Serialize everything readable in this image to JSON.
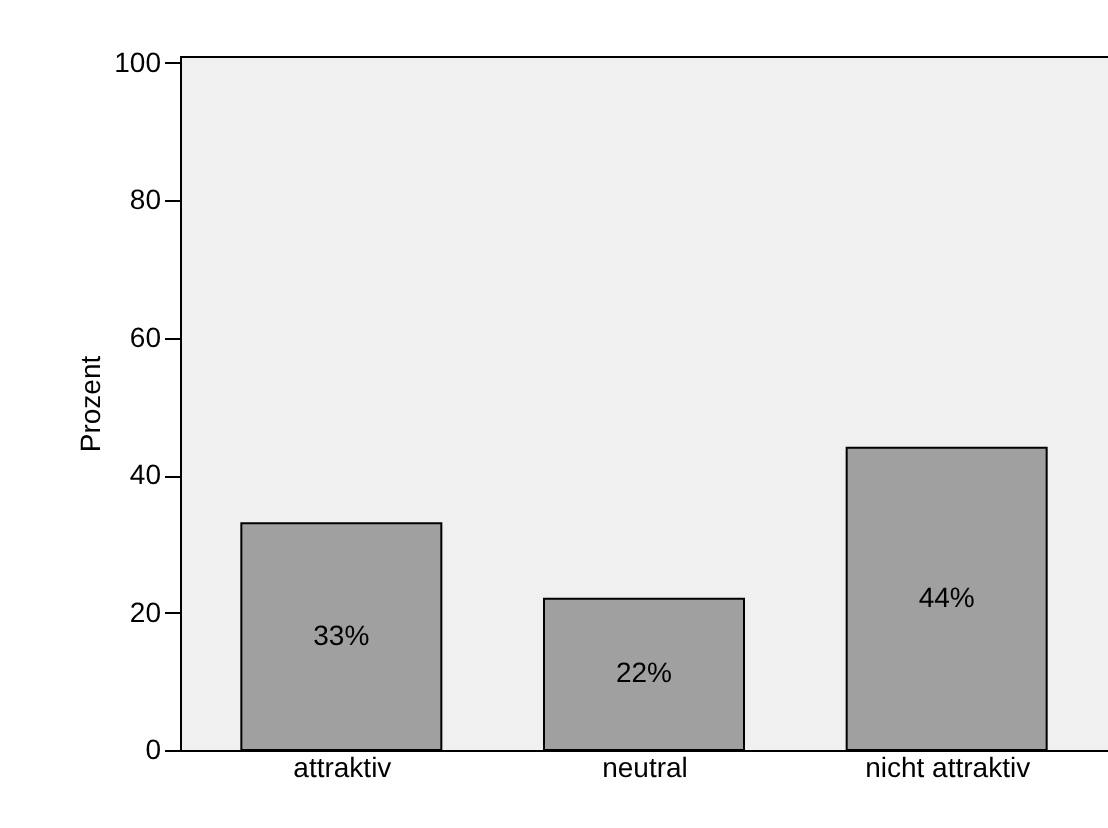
{
  "chart_data": {
    "type": "bar",
    "ylabel": "Prozent",
    "categories": [
      "attraktiv",
      "neutral",
      "nicht attraktiv"
    ],
    "values": [
      33,
      22,
      44
    ],
    "value_labels": [
      "33%",
      "22%",
      "44%"
    ],
    "color": "#a0a0a0",
    "ylim": [
      0,
      101
    ],
    "yticks": [
      0,
      20,
      40,
      60,
      80,
      100
    ],
    "grid": false
  }
}
